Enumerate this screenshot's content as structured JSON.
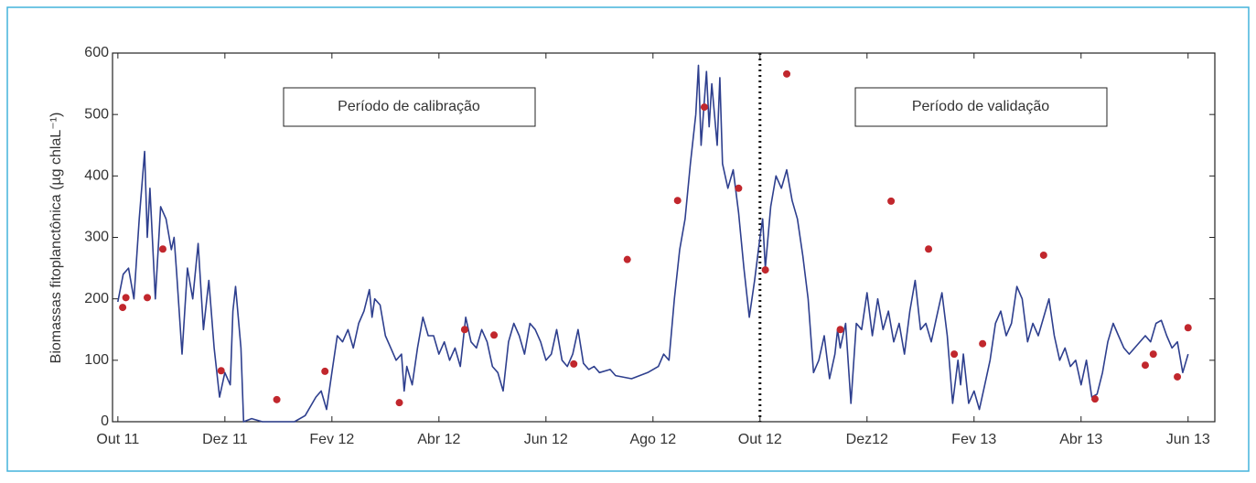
{
  "chart_data": {
    "type": "line",
    "ylabel": "Biomassas fitoplanctônica (µg chlaL⁻¹)",
    "annotations": [
      "Período de calibração",
      "Período de validação"
    ],
    "xlim": [
      -0.1,
      20.5
    ],
    "xticks": [
      {
        "value": 0,
        "label": "Out 11"
      },
      {
        "value": 2,
        "label": "Dez 11"
      },
      {
        "value": 4,
        "label": "Fev 12"
      },
      {
        "value": 6,
        "label": "Abr 12"
      },
      {
        "value": 8,
        "label": "Jun 12"
      },
      {
        "value": 10,
        "label": "Ago 12"
      },
      {
        "value": 12,
        "label": "Out 12"
      },
      {
        "value": 14,
        "label": "Dez12"
      },
      {
        "value": 16,
        "label": "Fev 13"
      },
      {
        "value": 18,
        "label": "Abr 13"
      },
      {
        "value": 20,
        "label": "Jun 13"
      }
    ],
    "ylim": [
      0,
      600
    ],
    "yticks": [
      0,
      100,
      200,
      300,
      400,
      500,
      600
    ],
    "series": [
      {
        "type": "line",
        "color": "#2e3f8e",
        "x": [
          0,
          0.1,
          0.2,
          0.3,
          0.4,
          0.5,
          0.55,
          0.6,
          0.7,
          0.8,
          0.9,
          1.0,
          1.05,
          1.1,
          1.2,
          1.3,
          1.4,
          1.5,
          1.6,
          1.7,
          1.8,
          1.9,
          2.0,
          2.1,
          2.15,
          2.2,
          2.3,
          2.35,
          2.5,
          2.7,
          3.0,
          3.3,
          3.5,
          3.7,
          3.8,
          3.9,
          4.0,
          4.1,
          4.2,
          4.3,
          4.4,
          4.5,
          4.6,
          4.7,
          4.75,
          4.8,
          4.9,
          5.0,
          5.1,
          5.2,
          5.3,
          5.35,
          5.4,
          5.5,
          5.6,
          5.7,
          5.8,
          5.9,
          6.0,
          6.1,
          6.2,
          6.3,
          6.4,
          6.5,
          6.6,
          6.7,
          6.8,
          6.9,
          7.0,
          7.1,
          7.2,
          7.3,
          7.4,
          7.5,
          7.6,
          7.7,
          7.8,
          7.9,
          8.0,
          8.1,
          8.2,
          8.3,
          8.4,
          8.5,
          8.6,
          8.7,
          8.8,
          8.9,
          9.0,
          9.2,
          9.3,
          9.6,
          9.9,
          10.1,
          10.2,
          10.3,
          10.4,
          10.5,
          10.6,
          10.7,
          10.8,
          10.85,
          10.9,
          11.0,
          11.05,
          11.1,
          11.2,
          11.25,
          11.3,
          11.4,
          11.5,
          11.6,
          11.7,
          11.8,
          11.9,
          12.0,
          12.05,
          12.1,
          12.2,
          12.3,
          12.4,
          12.5,
          12.6,
          12.7,
          12.8,
          12.9,
          13.0,
          13.1,
          13.2,
          13.3,
          13.4,
          13.45,
          13.5,
          13.6,
          13.7,
          13.8,
          13.9,
          14.0,
          14.1,
          14.2,
          14.3,
          14.4,
          14.5,
          14.6,
          14.7,
          14.8,
          14.9,
          15.0,
          15.1,
          15.2,
          15.3,
          15.4,
          15.5,
          15.6,
          15.7,
          15.75,
          15.8,
          15.9,
          16.0,
          16.1,
          16.2,
          16.3,
          16.4,
          16.5,
          16.6,
          16.7,
          16.8,
          16.9,
          17.0,
          17.1,
          17.2,
          17.4,
          17.5,
          17.6,
          17.7,
          17.8,
          17.9,
          18.0,
          18.1,
          18.2,
          18.3,
          18.4,
          18.5,
          18.6,
          18.7,
          18.8,
          18.9,
          19.0,
          19.2,
          19.3,
          19.4,
          19.5,
          19.6,
          19.7,
          19.8,
          19.9,
          20.0
        ],
        "values": [
          195,
          240,
          250,
          200,
          330,
          440,
          300,
          380,
          200,
          350,
          330,
          280,
          300,
          240,
          110,
          250,
          200,
          290,
          150,
          230,
          120,
          40,
          80,
          60,
          180,
          220,
          120,
          0,
          5,
          0,
          0,
          0,
          10,
          40,
          50,
          20,
          80,
          140,
          130,
          150,
          120,
          160,
          180,
          215,
          170,
          200,
          190,
          140,
          120,
          100,
          110,
          50,
          90,
          60,
          120,
          170,
          140,
          140,
          110,
          130,
          100,
          120,
          90,
          170,
          130,
          120,
          150,
          130,
          90,
          80,
          50,
          130,
          160,
          140,
          110,
          160,
          150,
          130,
          100,
          110,
          150,
          100,
          90,
          110,
          150,
          95,
          85,
          90,
          80,
          85,
          75,
          70,
          80,
          90,
          110,
          100,
          200,
          280,
          330,
          420,
          500,
          580,
          450,
          570,
          480,
          550,
          450,
          560,
          420,
          380,
          410,
          340,
          250,
          170,
          230,
          300,
          330,
          250,
          350,
          400,
          380,
          410,
          360,
          330,
          270,
          200,
          80,
          100,
          140,
          70,
          110,
          150,
          120,
          160,
          30,
          160,
          150,
          210,
          140,
          200,
          150,
          180,
          130,
          160,
          110,
          180,
          230,
          150,
          160,
          130,
          170,
          210,
          140,
          30,
          100,
          60,
          110,
          30,
          50,
          20,
          60,
          100,
          160,
          180,
          140,
          160,
          220,
          200,
          130,
          160,
          140,
          200,
          140,
          100,
          120,
          90,
          100,
          60,
          100,
          40,
          45,
          80,
          130,
          160,
          140,
          120,
          110,
          120,
          140,
          130,
          160,
          165,
          140,
          120,
          130,
          80,
          110
        ]
      },
      {
        "type": "scatter",
        "color": "#c1272d",
        "x": [
          0.09,
          0.15,
          0.55,
          0.84,
          1.93,
          2.97,
          3.87,
          5.26,
          6.48,
          7.03,
          8.52,
          9.52,
          10.46,
          10.96,
          11.6,
          12.1,
          12.5,
          13.5,
          14.45,
          15.15,
          15.63,
          16.16,
          17.3,
          18.26,
          19.2,
          19.35,
          19.8,
          20.0
        ],
        "values": [
          186,
          202,
          202,
          281,
          83,
          36,
          82,
          31,
          150,
          141,
          94,
          264,
          360,
          512,
          380,
          247,
          566,
          150,
          359,
          281,
          110,
          127,
          271,
          37,
          92,
          110,
          73,
          153
        ]
      }
    ]
  }
}
